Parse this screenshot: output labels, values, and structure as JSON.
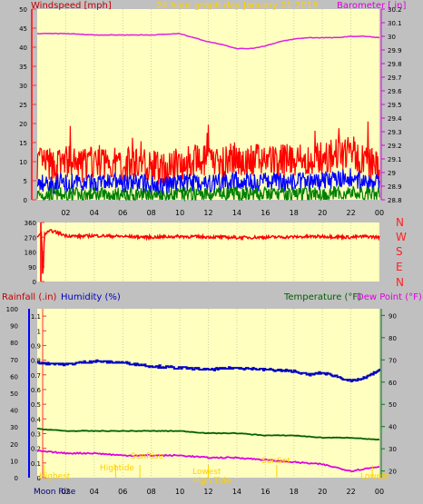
{
  "header": {
    "windspeed_label": "Windspeed [mph]",
    "title": "24 hour graph day   January 01 2016",
    "barometer_label": "Barometer [.in]"
  },
  "compass_letters": [
    "N",
    "W",
    "S",
    "E",
    "N"
  ],
  "lower_header": {
    "rainfall_label": "Rainfall (.in)",
    "humidity_label": "Humidity (%)",
    "temperature_label": "Temperature (°F)",
    "dewpoint_label": "Dew Point (°F)"
  },
  "annotations": {
    "highest": "Highest",
    "hightide": "Hightide",
    "sunrise": "SunRise",
    "lowest": "Lowest",
    "high_tide": "High Tide",
    "sunset": "SunSet",
    "lowest_right": "Lowest",
    "moon_rise": "Moon Rise"
  },
  "colors": {
    "panel_bg": "#ffffc0",
    "frame": "#c0c0c0",
    "axis_red": "#ff3030",
    "wind_max": "#ff0000",
    "wind_avg": "#0000ff",
    "wind_min": "#008000",
    "barometer": "#e020e0",
    "direction": "#ff0000",
    "humidity": "#0000c0",
    "temperature": "#006000",
    "dewpoint": "#e000e0",
    "label_yellow": "#ffd000"
  },
  "chart_data": [
    {
      "type": "line",
      "name": "wind_barometer",
      "x_ticks": [
        "02",
        "04",
        "06",
        "08",
        "10",
        "12",
        "14",
        "16",
        "18",
        "20",
        "22",
        "00"
      ],
      "y_left_ticks": [
        "0",
        "5",
        "10",
        "15",
        "20",
        "25",
        "30",
        "35",
        "40",
        "45",
        "50"
      ],
      "ylim_left": [
        0,
        50
      ],
      "y_right_ticks": [
        "28.8",
        "28.9",
        "29",
        "29.1",
        "29.2",
        "29.3",
        "29.4",
        "29.5",
        "29.6",
        "29.7",
        "29.8",
        "29.9",
        "30",
        "30.1",
        "30.2"
      ],
      "ylim_right": [
        28.8,
        30.2
      ],
      "series": [
        {
          "name": "Windspeed",
          "hours": [
            0,
            1,
            2,
            3,
            4,
            5,
            6,
            7,
            8,
            9,
            10,
            11,
            12,
            13,
            14,
            15,
            16,
            17,
            18,
            19,
            20,
            21,
            22,
            23,
            24
          ],
          "values": [
            9,
            8,
            9,
            8,
            9,
            9,
            8,
            9,
            8,
            7,
            9,
            9,
            9,
            9,
            10,
            9,
            10,
            9,
            10,
            9,
            10,
            11,
            12,
            9,
            8
          ]
        },
        {
          "name": "Barometer",
          "hours": [
            0,
            2,
            4,
            6,
            8,
            10,
            11,
            12,
            13,
            14,
            15,
            16,
            17,
            18,
            19,
            20,
            21,
            22,
            23,
            24
          ],
          "values": [
            30.02,
            30.02,
            30.01,
            30.01,
            30.01,
            30.02,
            29.99,
            29.96,
            29.94,
            29.91,
            29.91,
            29.93,
            29.96,
            29.98,
            29.99,
            29.99,
            29.99,
            30.0,
            30.0,
            29.99
          ]
        }
      ]
    },
    {
      "type": "line",
      "name": "wind_direction",
      "x_ticks": [
        "02",
        "04",
        "06",
        "08",
        "10",
        "12",
        "14",
        "16",
        "18",
        "20",
        "22",
        "00"
      ],
      "y_ticks": [
        "0",
        "90",
        "180",
        "270",
        "360"
      ],
      "ylim": [
        0,
        360
      ],
      "series": [
        {
          "name": "Direction",
          "hours": [
            0,
            0.3,
            0.4,
            0.5,
            1,
            2,
            3,
            4,
            6,
            8,
            10,
            12,
            14,
            16,
            18,
            20,
            22,
            23,
            24
          ],
          "values": [
            270,
            300,
            0,
            290,
            310,
            280,
            275,
            280,
            275,
            270,
            275,
            272,
            268,
            270,
            272,
            275,
            270,
            275,
            270
          ]
        }
      ]
    },
    {
      "type": "line",
      "name": "humidity_temperature",
      "x_ticks": [
        "02",
        "04",
        "06",
        "08",
        "10",
        "12",
        "14",
        "16",
        "18",
        "20",
        "22",
        "00"
      ],
      "y_rain_ticks": [
        "0",
        "0.1",
        "0.2",
        "0.3",
        "0.4",
        "0.5",
        "0.6",
        "0.7",
        "0.8",
        "0.9",
        "1",
        "1.1"
      ],
      "ylim_rain": [
        0,
        1.15
      ],
      "y_humidity_ticks": [
        "0",
        "10",
        "20",
        "30",
        "40",
        "50",
        "60",
        "70",
        "80",
        "90",
        "100"
      ],
      "ylim_humidity": [
        0,
        100
      ],
      "y_temp_ticks": [
        "20",
        "30",
        "40",
        "50",
        "60",
        "70",
        "80",
        "90"
      ],
      "ylim_temp": [
        17,
        93
      ],
      "series": [
        {
          "name": "Humidity",
          "hours": [
            0,
            2,
            4,
            6,
            8,
            10,
            12,
            14,
            16,
            18,
            19,
            20,
            21,
            22,
            23,
            24
          ],
          "values": [
            68,
            67,
            69,
            68,
            66,
            65,
            64,
            65,
            64,
            63,
            61,
            62,
            60,
            57,
            59,
            64
          ]
        },
        {
          "name": "Temperature",
          "hours": [
            0,
            2,
            4,
            6,
            8,
            10,
            12,
            14,
            16,
            18,
            20,
            22,
            24
          ],
          "values": [
            39,
            38,
            38,
            38,
            38,
            38,
            37,
            37,
            36,
            36,
            35,
            35,
            34
          ]
        },
        {
          "name": "Dew Point",
          "hours": [
            0,
            2,
            4,
            6,
            8,
            10,
            12,
            14,
            16,
            18,
            20,
            22,
            23,
            24
          ],
          "values": [
            29,
            28,
            28,
            27,
            27,
            27,
            26,
            26,
            25,
            24,
            23,
            20,
            21,
            22
          ]
        }
      ]
    }
  ]
}
